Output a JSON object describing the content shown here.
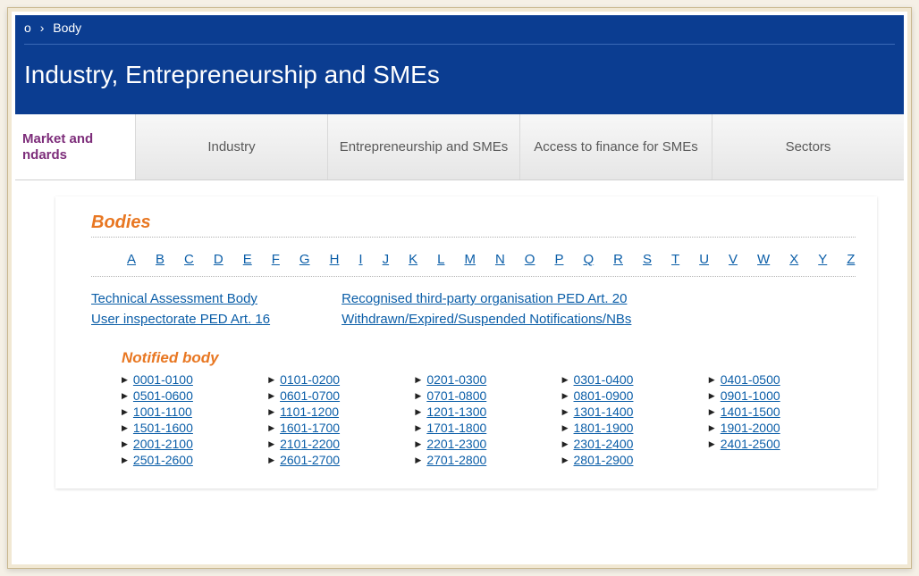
{
  "colors": {
    "header_bg": "#0b3d91",
    "accent": "#e87722",
    "link": "#0b5ea8",
    "tab_active_text": "#7d2d7a"
  },
  "breadcrumb": {
    "prev_fragment": "o",
    "current": "Body"
  },
  "header": {
    "title": "Industry, Entrepreneurship and SMEs"
  },
  "tabs": [
    {
      "label": "Market and ndards",
      "active": true
    },
    {
      "label": "Industry",
      "active": false
    },
    {
      "label": "Entrepreneurship and SMEs",
      "active": false
    },
    {
      "label": "Access to finance for SMEs",
      "active": false
    },
    {
      "label": "Sectors",
      "active": false
    }
  ],
  "bodies": {
    "heading": "Bodies",
    "alphabet": [
      "A",
      "B",
      "C",
      "D",
      "E",
      "F",
      "G",
      "H",
      "I",
      "J",
      "K",
      "L",
      "M",
      "N",
      "O",
      "P",
      "Q",
      "R",
      "S",
      "T",
      "U",
      "V",
      "W",
      "X",
      "Y",
      "Z"
    ],
    "type_links_left": [
      "Technical Assessment Body",
      "User inspectorate PED Art. 16"
    ],
    "type_links_right": [
      "Recognised third-party organisation PED Art. 20",
      "Withdrawn/Expired/Suspended Notifications/NBs"
    ],
    "notified_heading": "Notified body",
    "ranges": [
      "0001-0100",
      "0101-0200",
      "0201-0300",
      "0301-0400",
      "0401-0500",
      "0501-0600",
      "0601-0700",
      "0701-0800",
      "0801-0900",
      "0901-1000",
      "1001-1100",
      "1101-1200",
      "1201-1300",
      "1301-1400",
      "1401-1500",
      "1501-1600",
      "1601-1700",
      "1701-1800",
      "1801-1900",
      "1901-2000",
      "2001-2100",
      "2101-2200",
      "2201-2300",
      "2301-2400",
      "2401-2500",
      "2501-2600",
      "2601-2700",
      "2701-2800",
      "2801-2900"
    ]
  }
}
